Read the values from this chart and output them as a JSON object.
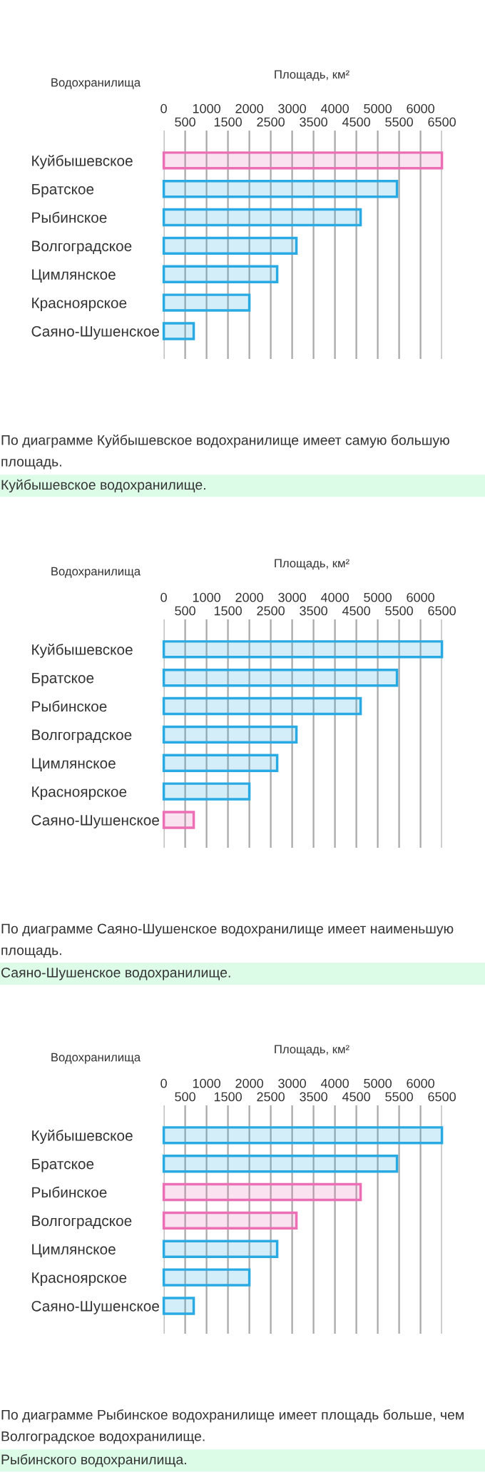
{
  "chart_data": [
    {
      "type": "bar",
      "orientation": "horizontal",
      "xlabel": "Площадь, км²",
      "ylabel": "Водохранилища",
      "categories": [
        "Куйбышевское",
        "Братское",
        "Рыбинское",
        "Волгоградское",
        "Цимлянское",
        "Красноярское",
        "Саяно-Шушенское"
      ],
      "values": [
        6500,
        5450,
        4600,
        3100,
        2650,
        2000,
        700
      ],
      "colors": [
        "#ec6fb5",
        "#2aaae2",
        "#2aaae2",
        "#2aaae2",
        "#2aaae2",
        "#2aaae2",
        "#2aaae2"
      ],
      "xlim": [
        0,
        6500
      ],
      "xticks": [
        500,
        1500,
        2500,
        3500,
        4500,
        5500,
        6500
      ],
      "x2lim": [
        0,
        6500
      ],
      "x2ticks": [
        0,
        1000,
        2000,
        3000,
        4000,
        5000,
        6000
      ],
      "grid": "x",
      "annotations": [
        "По диаграмме Куйбышевское водохранилище имеет самую большую площадь.",
        "Куйбышевское водохранилище."
      ]
    },
    {
      "type": "bar",
      "orientation": "horizontal",
      "xlabel": "Площадь, км²",
      "ylabel": "Водохранилища",
      "categories": [
        "Куйбышевское",
        "Братское",
        "Рыбинское",
        "Волгоградское",
        "Цимлянское",
        "Красноярское",
        "Саяно-Шушенское"
      ],
      "values": [
        6500,
        5450,
        4600,
        3100,
        2650,
        2000,
        700
      ],
      "colors": [
        "#2aaae2",
        "#2aaae2",
        "#2aaae2",
        "#2aaae2",
        "#2aaae2",
        "#2aaae2",
        "#ec6fb5"
      ],
      "xlim": [
        0,
        6500
      ],
      "xticks": [
        500,
        1500,
        2500,
        3500,
        4500,
        5500,
        6500
      ],
      "x2lim": [
        0,
        6500
      ],
      "x2ticks": [
        0,
        1000,
        2000,
        3000,
        4000,
        5000,
        6000
      ],
      "grid": "x",
      "annotations": [
        "По диаграмме Саяно-Шушенское водохранилище имеет наименьшую площадь.",
        "Саяно-Шушенское водохранилище."
      ]
    },
    {
      "type": "bar",
      "orientation": "horizontal",
      "xlabel": "Площадь, км²",
      "ylabel": "Водохранилища",
      "categories": [
        "Куйбышевское",
        "Братское",
        "Рыбинское",
        "Волгоградское",
        "Цимлянское",
        "Красноярское",
        "Саяно-Шушенское"
      ],
      "values": [
        6500,
        5450,
        4600,
        3100,
        2650,
        2000,
        700
      ],
      "colors": [
        "#2aaae2",
        "#2aaae2",
        "#ec6fb5",
        "#ec6fb5",
        "#2aaae2",
        "#2aaae2",
        "#2aaae2"
      ],
      "xlim": [
        0,
        6500
      ],
      "xticks": [
        500,
        1500,
        2500,
        3500,
        4500,
        5500,
        6500
      ],
      "x2lim": [
        0,
        6500
      ],
      "x2ticks": [
        0,
        1000,
        2000,
        3000,
        4000,
        5000,
        6000
      ],
      "grid": "x",
      "annotations": [
        "По диаграмме Рыбинское водохранилище имеет площадь больше, чем Волгоградское водохранилище.",
        "Рыбинского водохранилища."
      ]
    }
  ]
}
